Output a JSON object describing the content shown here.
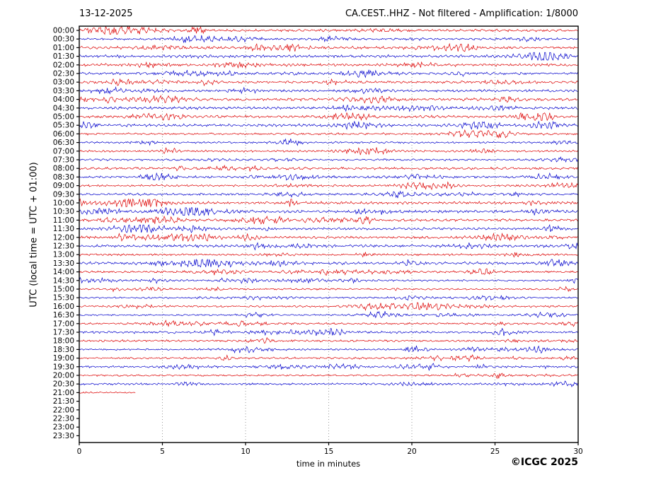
{
  "header": {
    "date": "13-12-2025",
    "station_info": "CA.CEST..HHZ - Not filtered - Amplification: 1/8000"
  },
  "axes": {
    "y_label": "UTC (local time = UTC + 01:00)",
    "x_label": "time in minutes",
    "x_ticks": [
      0,
      5,
      10,
      15,
      20,
      25,
      30
    ],
    "x_range": [
      0,
      30
    ],
    "grid_x_minutes": [
      5,
      10,
      15,
      20,
      25
    ]
  },
  "footer": {
    "copyright": "©ICGC 2025"
  },
  "colors": {
    "red": "#dd0000",
    "blue": "#0000cc",
    "grid": "#999999",
    "axis": "#000000",
    "background": "#ffffff"
  },
  "chart_data": {
    "type": "line",
    "subtype": "helicorder-seismogram",
    "title": "13-12-2025  |  CA.CEST..HHZ - Not filtered - Amplification: 1/8000",
    "station": "CA.CEST..HHZ",
    "date": "13-12-2025",
    "filter": "Not filtered",
    "amplification": "1/8000",
    "minutes_per_line": 30,
    "x_range_minutes": [
      0,
      30
    ],
    "grid": "vertical dotted lines every 5 minutes",
    "legend": "none",
    "trace_style": "continuous band-limited microseismic noise, peak amplitude about one third of row spacing; data recording stops at 21:03 UTC",
    "rows": [
      {
        "label": "00:00",
        "color": "red",
        "coverage_minutes": 30
      },
      {
        "label": "00:30",
        "color": "blue",
        "coverage_minutes": 30
      },
      {
        "label": "01:00",
        "color": "red",
        "coverage_minutes": 30
      },
      {
        "label": "01:30",
        "color": "blue",
        "coverage_minutes": 30
      },
      {
        "label": "02:00",
        "color": "red",
        "coverage_minutes": 30
      },
      {
        "label": "02:30",
        "color": "blue",
        "coverage_minutes": 30
      },
      {
        "label": "03:00",
        "color": "red",
        "coverage_minutes": 30
      },
      {
        "label": "03:30",
        "color": "blue",
        "coverage_minutes": 30
      },
      {
        "label": "04:00",
        "color": "red",
        "coverage_minutes": 30
      },
      {
        "label": "04:30",
        "color": "blue",
        "coverage_minutes": 30
      },
      {
        "label": "05:00",
        "color": "red",
        "coverage_minutes": 30
      },
      {
        "label": "05:30",
        "color": "blue",
        "coverage_minutes": 30
      },
      {
        "label": "06:00",
        "color": "red",
        "coverage_minutes": 30
      },
      {
        "label": "06:30",
        "color": "blue",
        "coverage_minutes": 30
      },
      {
        "label": "07:00",
        "color": "red",
        "coverage_minutes": 30
      },
      {
        "label": "07:30",
        "color": "blue",
        "coverage_minutes": 30
      },
      {
        "label": "08:00",
        "color": "red",
        "coverage_minutes": 30
      },
      {
        "label": "08:30",
        "color": "blue",
        "coverage_minutes": 30
      },
      {
        "label": "09:00",
        "color": "red",
        "coverage_minutes": 30
      },
      {
        "label": "09:30",
        "color": "blue",
        "coverage_minutes": 30
      },
      {
        "label": "10:00",
        "color": "red",
        "coverage_minutes": 30
      },
      {
        "label": "10:30",
        "color": "blue",
        "coverage_minutes": 30
      },
      {
        "label": "11:00",
        "color": "red",
        "coverage_minutes": 30
      },
      {
        "label": "11:30",
        "color": "blue",
        "coverage_minutes": 30
      },
      {
        "label": "12:00",
        "color": "red",
        "coverage_minutes": 30
      },
      {
        "label": "12:30",
        "color": "blue",
        "coverage_minutes": 30
      },
      {
        "label": "13:00",
        "color": "red",
        "coverage_minutes": 30
      },
      {
        "label": "13:30",
        "color": "blue",
        "coverage_minutes": 30
      },
      {
        "label": "14:00",
        "color": "red",
        "coverage_minutes": 30
      },
      {
        "label": "14:30",
        "color": "blue",
        "coverage_minutes": 30
      },
      {
        "label": "15:00",
        "color": "red",
        "coverage_minutes": 30
      },
      {
        "label": "15:30",
        "color": "blue",
        "coverage_minutes": 30
      },
      {
        "label": "16:00",
        "color": "red",
        "coverage_minutes": 30
      },
      {
        "label": "16:30",
        "color": "blue",
        "coverage_minutes": 30
      },
      {
        "label": "17:00",
        "color": "red",
        "coverage_minutes": 30
      },
      {
        "label": "17:30",
        "color": "blue",
        "coverage_minutes": 30
      },
      {
        "label": "18:00",
        "color": "red",
        "coverage_minutes": 30
      },
      {
        "label": "18:30",
        "color": "blue",
        "coverage_minutes": 30
      },
      {
        "label": "19:00",
        "color": "red",
        "coverage_minutes": 30
      },
      {
        "label": "19:30",
        "color": "blue",
        "coverage_minutes": 30
      },
      {
        "label": "20:00",
        "color": "red",
        "coverage_minutes": 30
      },
      {
        "label": "20:30",
        "color": "blue",
        "coverage_minutes": 30
      },
      {
        "label": "21:00",
        "color": "red",
        "coverage_minutes": 3.4
      },
      {
        "label": "21:30",
        "color": "blue",
        "coverage_minutes": 0
      },
      {
        "label": "22:00",
        "color": "red",
        "coverage_minutes": 0
      },
      {
        "label": "22:30",
        "color": "blue",
        "coverage_minutes": 0
      },
      {
        "label": "23:00",
        "color": "red",
        "coverage_minutes": 0
      },
      {
        "label": "23:30",
        "color": "blue",
        "coverage_minutes": 0
      }
    ]
  }
}
